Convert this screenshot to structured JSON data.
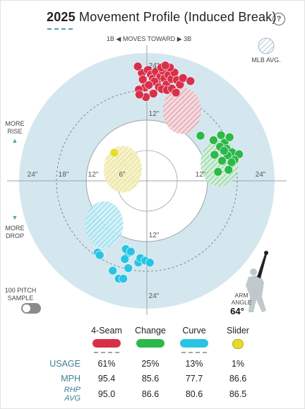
{
  "header": {
    "year": "2025",
    "title": "Movement Profile (Induced Break)",
    "help": "?"
  },
  "labels": {
    "moves_toward_left": "1B ◀",
    "moves_toward": "MOVES TOWARD",
    "moves_toward_right": "▶ 3B",
    "mlb_avg": "MLB AVG.",
    "more_rise": "MORE RISE",
    "more_drop": "MORE DROP",
    "sample_toggle": "100 PITCH SAMPLE",
    "arm_angle_label": "ARM ANGLE",
    "arm_angle_value": "64°",
    "rise_arrow": "▲",
    "drop_arrow": "▼"
  },
  "colors": {
    "ring_fill": "#d4e7ef",
    "axis": "#9aa4a8",
    "four_seam": "#d9304a",
    "change": "#2db84a",
    "curve": "#29c4e3",
    "slider": "#e8dc2a"
  },
  "chart_data": {
    "type": "scatter",
    "x_label": "MOVES TOWARD",
    "axis_ticks": {
      "horizontal": [
        "24\"",
        "18\"",
        "12\"",
        "6\"",
        "12\"",
        "24\""
      ],
      "vertical": [
        "24\"",
        "12\"",
        "12\"",
        "24\""
      ]
    },
    "unit": "inches",
    "range_inches": 30,
    "series": [
      {
        "name": "4-Seam",
        "color": "#d9304a",
        "mlb_avg": {
          "x": 7,
          "y": 14
        },
        "points": [
          [
            -1,
            21.5
          ],
          [
            -0.8,
            20.2
          ],
          [
            -0.4,
            18.6
          ],
          [
            0.2,
            22.1
          ],
          [
            0.8,
            21.2
          ],
          [
            1.2,
            20.4
          ],
          [
            1.8,
            21.8
          ],
          [
            2.1,
            20
          ],
          [
            2.7,
            20.8
          ],
          [
            3.2,
            21.9
          ],
          [
            3.5,
            20.4
          ],
          [
            3.9,
            19.2
          ],
          [
            4.3,
            21.1
          ],
          [
            4.9,
            20.3
          ],
          [
            5.5,
            21.6
          ],
          [
            6,
            20.1
          ],
          [
            6.6,
            19.2
          ],
          [
            7.2,
            20.5
          ],
          [
            1.5,
            19.8
          ],
          [
            2.4,
            18.7
          ],
          [
            3,
            18.3
          ],
          [
            4,
            18.1
          ],
          [
            5,
            18.4
          ],
          [
            -1.6,
            18.2
          ],
          [
            0.4,
            19.1
          ],
          [
            2.9,
            22.6
          ],
          [
            4.6,
            22.6
          ],
          [
            3.7,
            23
          ],
          [
            1.3,
            17.4
          ],
          [
            5.8,
            17.6
          ],
          [
            -0.2,
            16.7
          ],
          [
            -1.5,
            17.2
          ],
          [
            -1.8,
            22.8
          ],
          [
            8.7,
            19.9
          ]
        ]
      },
      {
        "name": "Change",
        "color": "#2db84a",
        "mlb_avg": {
          "x": 14.5,
          "y": 3.5
        },
        "points": [
          [
            10.7,
            9
          ],
          [
            13.3,
            8.1
          ],
          [
            14.8,
            9.1
          ],
          [
            15.5,
            7.6
          ],
          [
            16.5,
            8.7
          ],
          [
            14.6,
            6.8
          ],
          [
            15.9,
            6.4
          ],
          [
            17,
            5.7
          ],
          [
            18.4,
            5.3
          ],
          [
            13.5,
            5.2
          ],
          [
            16.1,
            5.1
          ],
          [
            17.5,
            4.2
          ],
          [
            15,
            4
          ],
          [
            16.9,
            3.7
          ],
          [
            15.4,
            6
          ],
          [
            16.3,
            2.2
          ],
          [
            14.2,
            1.8
          ]
        ]
      },
      {
        "name": "Curve",
        "color": "#29c4e3",
        "mlb_avg": {
          "x": -8.5,
          "y": -8.7
        },
        "points": [
          [
            -9.8,
            -14.3
          ],
          [
            -9.4,
            -14.8
          ],
          [
            -3.7,
            -14.4
          ],
          [
            -4.2,
            -13.6
          ],
          [
            -3.2,
            -14.1
          ],
          [
            -4.4,
            -15.6
          ],
          [
            -1.7,
            -16.3
          ],
          [
            -3.7,
            -17.4
          ],
          [
            -1.3,
            -15.4
          ],
          [
            -0.3,
            -15.9
          ],
          [
            0.6,
            -16.3
          ],
          [
            -6.8,
            -17.9
          ],
          [
            -5.6,
            -19.5
          ],
          [
            -4.7,
            -19.5
          ]
        ]
      },
      {
        "name": "Slider",
        "color": "#e8dc2a",
        "mlb_avg": {
          "x": -4.8,
          "y": 2.3
        },
        "points": [
          [
            -6.5,
            5.6
          ]
        ]
      }
    ]
  },
  "table": {
    "pitches": [
      "4-Seam",
      "Change",
      "Curve",
      "Slider"
    ],
    "rows": [
      {
        "label": "USAGE",
        "values": [
          "61%",
          "25%",
          "13%",
          "1%"
        ]
      },
      {
        "label": "MPH",
        "values": [
          "95.4",
          "85.6",
          "77.7",
          "86.6"
        ]
      },
      {
        "label": "RHP AVG",
        "values": [
          "95.0",
          "86.6",
          "80.6",
          "86.5"
        ]
      }
    ]
  }
}
